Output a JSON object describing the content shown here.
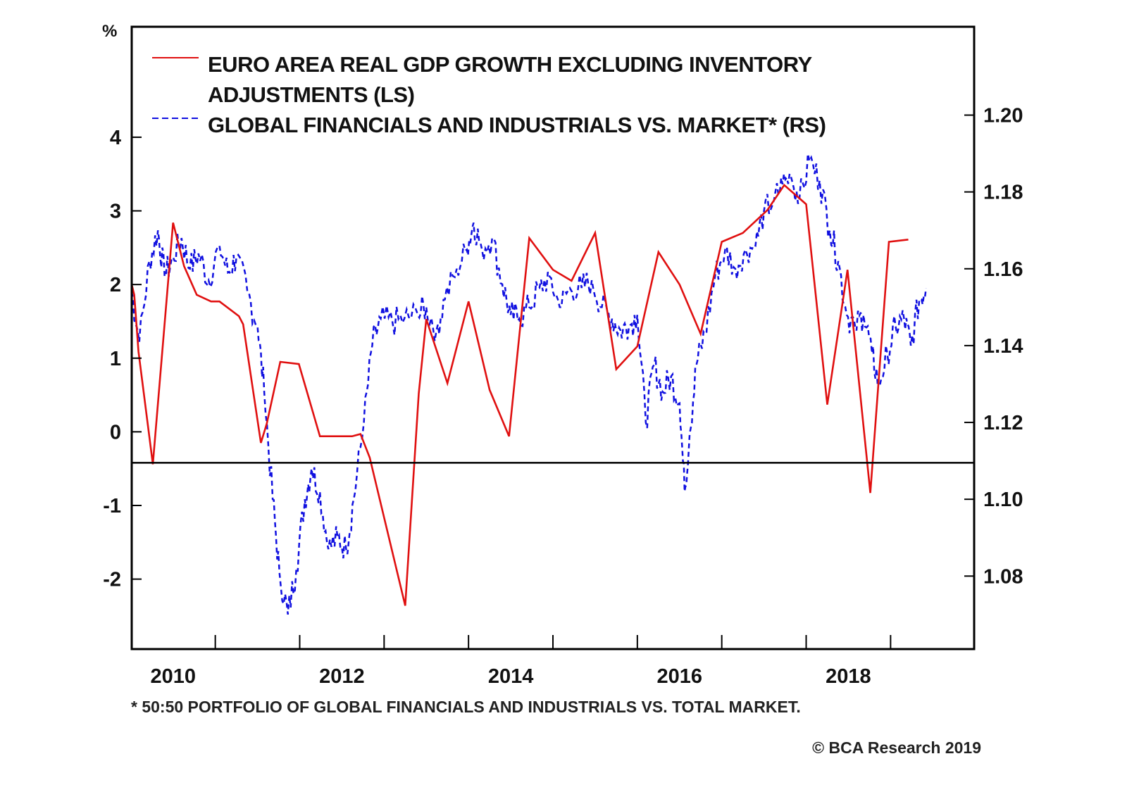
{
  "chart_data": {
    "type": "line",
    "title": "",
    "left_axis": {
      "unit_label": "%",
      "ticks": [
        "4",
        "3",
        "2",
        "1",
        "0",
        "-1",
        "-2"
      ],
      "tick_values": [
        4,
        3,
        2,
        1,
        0,
        -1,
        -2
      ],
      "range": [
        -2.95,
        5.5
      ]
    },
    "right_axis": {
      "ticks": [
        "1.20",
        "1.18",
        "1.16",
        "1.14",
        "1.12",
        "1.10",
        "1.08"
      ],
      "tick_values": [
        1.2,
        1.18,
        1.16,
        1.14,
        1.12,
        1.1,
        1.08
      ],
      "range": [
        1.061,
        1.223
      ]
    },
    "x_axis": {
      "tick_labels": [
        "2010",
        "2012",
        "2014",
        "2016",
        "2018"
      ],
      "tick_label_values": [
        2010,
        2012,
        2014,
        2016,
        2018
      ],
      "minor_ticks": [
        2010.5,
        2011.5,
        2012.5,
        2013.5,
        2014.5,
        2015.5,
        2016.5,
        2017.5,
        2018.5
      ],
      "range": [
        2009.51,
        2019.49
      ]
    },
    "reference_line": {
      "axis": "left",
      "value": -0.42
    },
    "legend": {
      "placement": "top-left"
    },
    "series": [
      {
        "name": "EURO AREA REAL GDP GROWTH EXCLUDING INVENTORY ADJUSTMENTS (LS)",
        "legend_lines": [
          "EURO AREA REAL GDP GROWTH EXCLUDING INVENTORY",
          "ADJUSTMENTS (LS)"
        ],
        "axis": "left",
        "style": "solid",
        "color": "#e01010",
        "points": [
          [
            2009.51,
            2.0
          ],
          [
            2009.54,
            1.86
          ],
          [
            2009.59,
            1.09
          ],
          [
            2009.76,
            -0.44
          ],
          [
            2010.0,
            2.84
          ],
          [
            2010.13,
            2.25
          ],
          [
            2010.28,
            1.86
          ],
          [
            2010.45,
            1.77
          ],
          [
            2010.55,
            1.77
          ],
          [
            2010.78,
            1.57
          ],
          [
            2010.83,
            1.46
          ],
          [
            2011.04,
            -0.15
          ],
          [
            2011.11,
            0.11
          ],
          [
            2011.27,
            0.95
          ],
          [
            2011.49,
            0.92
          ],
          [
            2011.74,
            -0.06
          ],
          [
            2012.12,
            -0.06
          ],
          [
            2012.22,
            -0.03
          ],
          [
            2012.33,
            -0.35
          ],
          [
            2012.75,
            -2.36
          ],
          [
            2012.91,
            0.52
          ],
          [
            2013.0,
            1.53
          ],
          [
            2013.25,
            0.66
          ],
          [
            2013.5,
            1.77
          ],
          [
            2013.75,
            0.57
          ],
          [
            2013.98,
            -0.06
          ],
          [
            2014.22,
            2.63
          ],
          [
            2014.5,
            2.2
          ],
          [
            2014.72,
            2.05
          ],
          [
            2015.0,
            2.7
          ],
          [
            2015.25,
            0.85
          ],
          [
            2015.5,
            1.16
          ],
          [
            2015.75,
            2.44
          ],
          [
            2016.0,
            2.0
          ],
          [
            2016.25,
            1.33
          ],
          [
            2016.5,
            2.58
          ],
          [
            2016.75,
            2.7
          ],
          [
            2017.04,
            3.01
          ],
          [
            2017.24,
            3.35
          ],
          [
            2017.5,
            3.09
          ],
          [
            2017.75,
            0.37
          ],
          [
            2017.99,
            2.2
          ],
          [
            2018.26,
            -0.83
          ],
          [
            2018.48,
            2.58
          ],
          [
            2018.71,
            2.61
          ]
        ]
      },
      {
        "name": "GLOBAL FINANCIALS AND INDUSTRIALS VS. MARKET* (RS)",
        "legend_lines": [
          "GLOBAL FINANCIALS AND INDUSTRIALS VS. MARKET* (RS)"
        ],
        "axis": "right",
        "style": "dashed",
        "color": "#1010e0",
        "points": [
          [
            2009.51,
            1.154
          ],
          [
            2009.6,
            1.141
          ],
          [
            2009.72,
            1.162
          ],
          [
            2009.82,
            1.17
          ],
          [
            2009.9,
            1.158
          ],
          [
            2010.0,
            1.163
          ],
          [
            2010.1,
            1.168
          ],
          [
            2010.2,
            1.16
          ],
          [
            2010.3,
            1.164
          ],
          [
            2010.42,
            1.157
          ],
          [
            2010.55,
            1.166
          ],
          [
            2010.65,
            1.159
          ],
          [
            2010.75,
            1.163
          ],
          [
            2010.88,
            1.154
          ],
          [
            2011.0,
            1.145
          ],
          [
            2011.08,
            1.128
          ],
          [
            2011.18,
            1.1
          ],
          [
            2011.26,
            1.081
          ],
          [
            2011.36,
            1.07
          ],
          [
            2011.46,
            1.082
          ],
          [
            2011.56,
            1.1
          ],
          [
            2011.64,
            1.108
          ],
          [
            2011.74,
            1.102
          ],
          [
            2011.84,
            1.087
          ],
          [
            2011.95,
            1.09
          ],
          [
            2012.05,
            1.087
          ],
          [
            2012.14,
            1.1
          ],
          [
            2012.26,
            1.12
          ],
          [
            2012.36,
            1.14
          ],
          [
            2012.46,
            1.147
          ],
          [
            2012.6,
            1.146
          ],
          [
            2012.74,
            1.147
          ],
          [
            2012.9,
            1.148
          ],
          [
            2013.0,
            1.15
          ],
          [
            2013.12,
            1.144
          ],
          [
            2013.22,
            1.152
          ],
          [
            2013.36,
            1.16
          ],
          [
            2013.48,
            1.165
          ],
          [
            2013.56,
            1.172
          ],
          [
            2013.66,
            1.165
          ],
          [
            2013.78,
            1.168
          ],
          [
            2013.9,
            1.156
          ],
          [
            2014.0,
            1.148
          ],
          [
            2014.1,
            1.147
          ],
          [
            2014.22,
            1.15
          ],
          [
            2014.34,
            1.155
          ],
          [
            2014.46,
            1.158
          ],
          [
            2014.58,
            1.15
          ],
          [
            2014.7,
            1.155
          ],
          [
            2014.84,
            1.155
          ],
          [
            2014.96,
            1.157
          ],
          [
            2015.08,
            1.15
          ],
          [
            2015.2,
            1.147
          ],
          [
            2015.3,
            1.144
          ],
          [
            2015.4,
            1.145
          ],
          [
            2015.5,
            1.148
          ],
          [
            2015.6,
            1.12
          ],
          [
            2015.7,
            1.135
          ],
          [
            2015.8,
            1.128
          ],
          [
            2015.9,
            1.132
          ],
          [
            2016.0,
            1.125
          ],
          [
            2016.06,
            1.102
          ],
          [
            2016.12,
            1.117
          ],
          [
            2016.2,
            1.135
          ],
          [
            2016.3,
            1.143
          ],
          [
            2016.42,
            1.158
          ],
          [
            2016.54,
            1.165
          ],
          [
            2016.66,
            1.16
          ],
          [
            2016.78,
            1.165
          ],
          [
            2016.9,
            1.166
          ],
          [
            2017.0,
            1.175
          ],
          [
            2017.12,
            1.178
          ],
          [
            2017.22,
            1.182
          ],
          [
            2017.32,
            1.184
          ],
          [
            2017.42,
            1.178
          ],
          [
            2017.54,
            1.188
          ],
          [
            2017.66,
            1.183
          ],
          [
            2017.78,
            1.17
          ],
          [
            2017.88,
            1.162
          ],
          [
            2017.98,
            1.148
          ],
          [
            2018.08,
            1.145
          ],
          [
            2018.18,
            1.148
          ],
          [
            2018.28,
            1.138
          ],
          [
            2018.36,
            1.13
          ],
          [
            2018.46,
            1.138
          ],
          [
            2018.56,
            1.145
          ],
          [
            2018.66,
            1.147
          ],
          [
            2018.74,
            1.14
          ],
          [
            2018.84,
            1.152
          ],
          [
            2018.92,
            1.155
          ]
        ]
      }
    ],
    "footnote": "* 50:50 PORTFOLIO OF GLOBAL FINANCIALS AND INDUSTRIALS VS. TOTAL MARKET.",
    "credit": "© BCA Research 2019"
  }
}
